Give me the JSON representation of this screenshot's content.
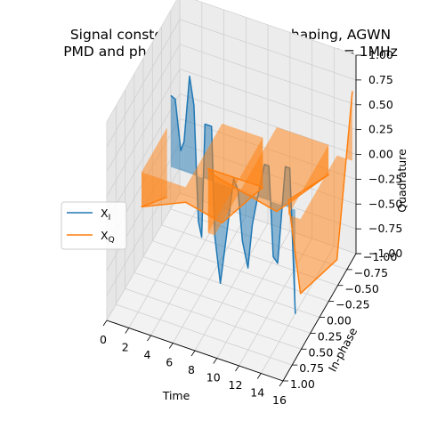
{
  "chart_data": {
    "type": "line3d",
    "title_lines": [
      "Signal constellation after pulseshaping, AGWN",
      "PMD and phase noise, linewidth of laser = 1MHz"
    ],
    "xlabel": "Time",
    "ylabel": "In-phase",
    "zlabel": "Quadrature",
    "xlim": [
      0,
      16
    ],
    "ylim": [
      -1.0,
      1.0
    ],
    "zlim": [
      -1.0,
      1.0
    ],
    "x_ticks": [
      "0",
      "2",
      "4",
      "6",
      "8",
      "10",
      "12",
      "14",
      "16"
    ],
    "y_ticks": [
      "−1.00",
      "−0.75",
      "−0.50",
      "−0.25",
      "0.00",
      "0.25",
      "0.50",
      "0.75",
      "1.00"
    ],
    "z_ticks": [
      "−1.00",
      "−0.75",
      "−0.50",
      "−0.25",
      "0.00",
      "0.25",
      "0.50",
      "0.75",
      "1.00"
    ],
    "legend_position": "center-left",
    "series": [
      {
        "name": "X_I",
        "legend_main": "X",
        "legend_sub": "I",
        "color": "#1f77b4",
        "points": [
          {
            "t": 2.5,
            "i": 0.0,
            "q": 0.72
          },
          {
            "t": 2.9,
            "i": 0.0,
            "q": 0.7
          },
          {
            "t": 3.4,
            "i": 0.0,
            "q": 0.2
          },
          {
            "t": 3.7,
            "i": 0.0,
            "q": 0.3
          },
          {
            "t": 4.2,
            "i": 0.0,
            "q": 0.98
          },
          {
            "t": 4.6,
            "i": 0.0,
            "q": 0.7
          },
          {
            "t": 5.0,
            "i": 0.0,
            "q": -0.45
          },
          {
            "t": 5.3,
            "i": 0.0,
            "q": -0.6
          },
          {
            "t": 5.6,
            "i": 0.0,
            "q": 0.55
          },
          {
            "t": 6.2,
            "i": 0.0,
            "q": 0.55
          },
          {
            "t": 6.5,
            "i": 0.0,
            "q": -0.55
          },
          {
            "t": 7.0,
            "i": 0.0,
            "q": -1.0
          },
          {
            "t": 7.5,
            "i": 0.0,
            "q": -0.55
          },
          {
            "t": 8.2,
            "i": 0.0,
            "q": 0.1
          },
          {
            "t": 8.6,
            "i": 0.0,
            "q": 0.0
          },
          {
            "t": 9.0,
            "i": 0.0,
            "q": -0.5
          },
          {
            "t": 9.5,
            "i": 0.0,
            "q": -0.75
          },
          {
            "t": 9.9,
            "i": 0.0,
            "q": -0.3
          },
          {
            "t": 10.3,
            "i": 0.0,
            "q": -0.05
          },
          {
            "t": 11.0,
            "i": 0.0,
            "q": 0.35
          },
          {
            "t": 11.4,
            "i": 0.0,
            "q": 0.35
          },
          {
            "t": 11.8,
            "i": 0.0,
            "q": -0.55
          },
          {
            "t": 12.2,
            "i": 0.0,
            "q": -0.6
          },
          {
            "t": 12.9,
            "i": 0.0,
            "q": 0.4
          },
          {
            "t": 13.3,
            "i": 0.0,
            "q": 0.4
          },
          {
            "t": 13.8,
            "i": 0.0,
            "q": -1.05
          }
        ]
      },
      {
        "name": "X_Q",
        "legend_main": "X",
        "legend_sub": "Q",
        "color": "#ff7f0e",
        "points": [
          {
            "t": 0.5,
            "i": -0.5,
            "q": -0.7
          },
          {
            "t": 0.5,
            "i": 0.2,
            "q": -0.35
          },
          {
            "t": 4.5,
            "i": 0.2,
            "q": -0.15
          },
          {
            "t": 4.5,
            "i": -0.8,
            "q": -1.0
          },
          {
            "t": 8.2,
            "i": -0.8,
            "q": -0.5
          },
          {
            "t": 8.2,
            "i": 0.7,
            "q": 0.65
          },
          {
            "t": 8.8,
            "i": 0.7,
            "q": 0.6
          },
          {
            "t": 8.8,
            "i": -1.0,
            "q": -0.85
          },
          {
            "t": 13.5,
            "i": -1.0,
            "q": -0.3
          },
          {
            "t": 13.5,
            "i": 0.1,
            "q": 0.15
          },
          {
            "t": 14.6,
            "i": 0.1,
            "q": -0.75
          },
          {
            "t": 14.6,
            "i": -0.9,
            "q": -1.05
          },
          {
            "t": 16.0,
            "i": -0.9,
            "q": 0.7
          }
        ]
      }
    ]
  }
}
